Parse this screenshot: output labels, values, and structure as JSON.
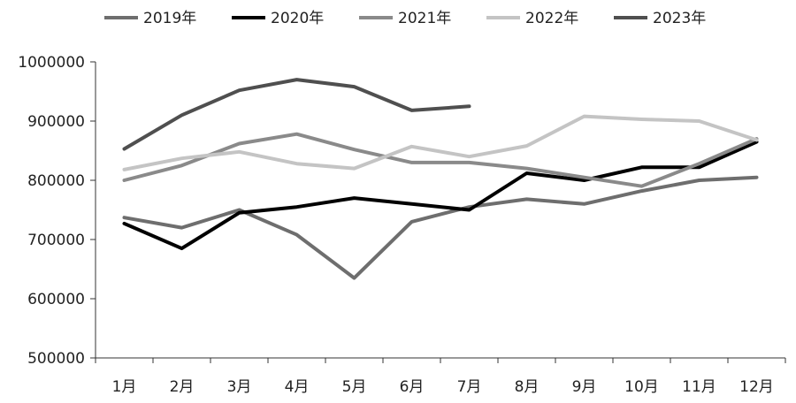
{
  "chart_data": {
    "type": "line",
    "title": "",
    "xlabel": "",
    "ylabel": "",
    "categories": [
      "1月",
      "2月",
      "3月",
      "4月",
      "5月",
      "6月",
      "7月",
      "8月",
      "9月",
      "10月",
      "11月",
      "12月"
    ],
    "ylim": [
      500000,
      1000000
    ],
    "yticks": [
      500000,
      600000,
      700000,
      800000,
      900000,
      1000000
    ],
    "grid": false,
    "legend_position": "top",
    "series": [
      {
        "name": "2019年",
        "color": "#6e6e6e",
        "values": [
          737000,
          720000,
          750000,
          708000,
          635000,
          730000,
          755000,
          768000,
          760000,
          782000,
          800000,
          805000
        ]
      },
      {
        "name": "2020年",
        "color": "#000000",
        "values": [
          727000,
          685000,
          745000,
          755000,
          770000,
          760000,
          750000,
          812000,
          800000,
          822000,
          822000,
          865000
        ]
      },
      {
        "name": "2021年",
        "color": "#8a8a8a",
        "values": [
          800000,
          825000,
          862000,
          878000,
          852000,
          830000,
          830000,
          820000,
          805000,
          790000,
          828000,
          870000
        ]
      },
      {
        "name": "2022年",
        "color": "#c4c4c4",
        "values": [
          818000,
          837000,
          848000,
          828000,
          820000,
          857000,
          840000,
          858000,
          908000,
          903000,
          900000,
          868000
        ]
      },
      {
        "name": "2023年",
        "color": "#4f4f4f",
        "values": [
          853000,
          910000,
          952000,
          970000,
          958000,
          918000,
          925000,
          null,
          null,
          null,
          null,
          null
        ]
      }
    ]
  }
}
